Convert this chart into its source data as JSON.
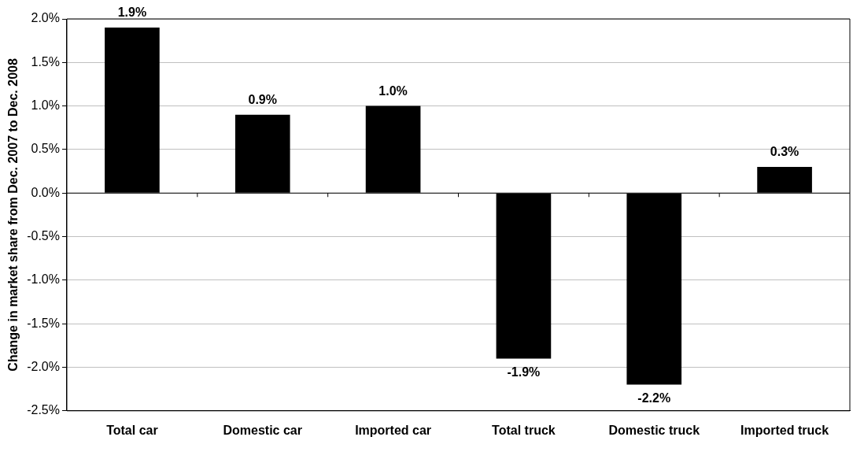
{
  "chart_data": {
    "type": "bar",
    "ylabel": "Change in market share from Dec. 2007 to Dec. 2008",
    "categories": [
      "Total car",
      "Domestic car",
      "Imported car",
      "Total truck",
      "Domestic truck",
      "Imported truck"
    ],
    "values": [
      1.9,
      0.9,
      1.0,
      -1.9,
      -2.2,
      0.3
    ],
    "value_labels": [
      "1.9%",
      "0.9%",
      "1.0%",
      "-1.9%",
      "-2.2%",
      "0.3%"
    ],
    "color": "#000000",
    "ylim": [
      -2.5,
      2.0
    ],
    "yticks": [
      {
        "value": -2.5,
        "label": "-2.5%"
      },
      {
        "value": -2.0,
        "label": "-2.0%"
      },
      {
        "value": -1.5,
        "label": "-1.5%"
      },
      {
        "value": -1.0,
        "label": "-1.0%"
      },
      {
        "value": -0.5,
        "label": "-0.5%"
      },
      {
        "value": 0,
        "label": "0.0%"
      },
      {
        "value": 0.5,
        "label": "0.5%"
      },
      {
        "value": 1.0,
        "label": "1.0%"
      },
      {
        "value": 1.5,
        "label": "1.5%"
      },
      {
        "value": 2.0,
        "label": "2.0%"
      }
    ],
    "grid": "y"
  }
}
